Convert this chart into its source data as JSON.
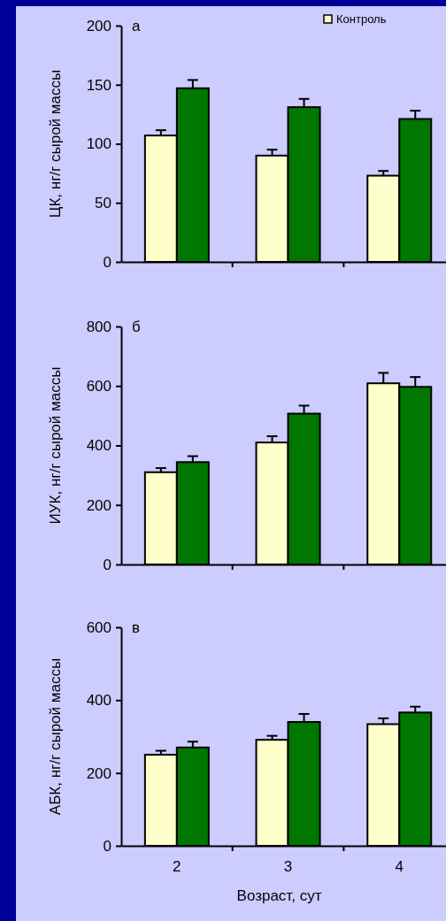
{
  "chart_data": [
    {
      "type": "bar",
      "title": "а",
      "ylabel": "ЦК, нг/г сырой массы",
      "categories": [
        null,
        null,
        null
      ],
      "tick_labels": "y",
      "ylim": [
        0,
        200
      ],
      "yticks": [
        0,
        50,
        100,
        150,
        200
      ],
      "legend": "top right",
      "series": [
        {
          "name": "Контроль",
          "color": "#ffffcc",
          "values": [
            107,
            90,
            73
          ],
          "errors": [
            4.5,
            5,
            4
          ]
        },
        {
          "color": "#007700",
          "values": [
            147,
            131,
            121
          ],
          "errors": [
            7,
            7,
            7
          ]
        }
      ]
    },
    {
      "type": "bar",
      "title": "б",
      "ylabel": "ИУК, нг/г сырой массы",
      "categories": [
        null,
        null,
        null
      ],
      "tick_labels": "y",
      "ylim": [
        0,
        800
      ],
      "yticks": [
        0,
        200,
        400,
        600,
        800
      ],
      "series": [
        {
          "color": "#ffffcc",
          "values": [
            310,
            410,
            609
          ],
          "errors": [
            14,
            21,
            35
          ]
        },
        {
          "color": "#007700",
          "values": [
            344,
            507,
            597
          ],
          "errors": [
            20,
            27,
            33
          ]
        }
      ]
    },
    {
      "type": "bar",
      "title": "в",
      "ylabel": "АБК, нг/г сырой массы",
      "xlabel": "Возраст, сут",
      "categories": [
        "2",
        "3",
        "4"
      ],
      "ylim": [
        0,
        600
      ],
      "yticks": [
        0,
        200,
        400,
        600
      ],
      "series": [
        {
          "color": "#ffffcc",
          "values": [
            250,
            291,
            334
          ],
          "errors": [
            11,
            11,
            16
          ]
        },
        {
          "color": "#007700",
          "values": [
            270,
            340,
            366
          ],
          "errors": [
            16,
            22,
            16
          ]
        }
      ]
    }
  ]
}
